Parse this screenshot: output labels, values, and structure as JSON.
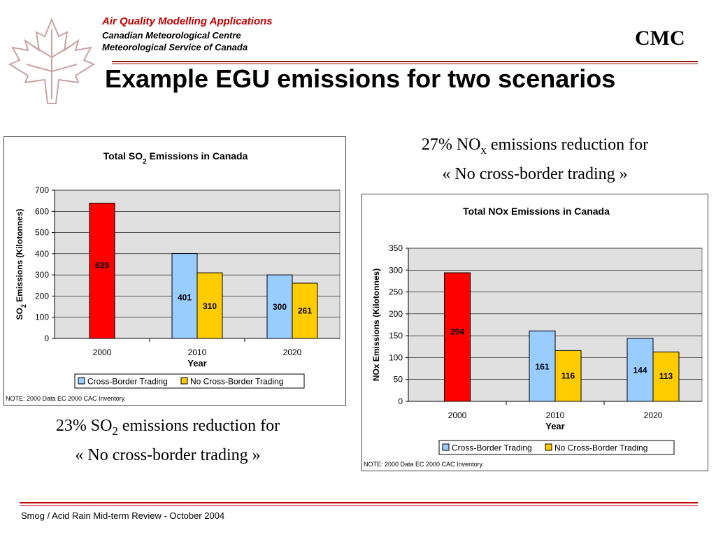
{
  "header": {
    "org_title": "Air Quality Modelling Applications",
    "org_line1": "Canadian Meteorological Centre",
    "org_line2": "Meteorological Service of Canada",
    "logo_text": "CMC",
    "slide_title": "Example EGU emissions for two scenarios"
  },
  "captions": {
    "nox_part1": "27% NO",
    "nox_sub": "x",
    "nox_part2": " emissions reduction for",
    "nox_line2": "« No cross-border trading »",
    "so2_part1": "23% SO",
    "so2_sub": "2",
    "so2_part2": " emissions reduction for",
    "so2_line2": "« No cross-border trading »"
  },
  "footer": {
    "text": "Smog / Acid Rain Mid-term Review - October 2004"
  },
  "colors": {
    "accent_red": "#c00000",
    "bar_2000": "#ff0000",
    "cross_border": "#99ccff",
    "no_cross_border": "#ffcc00",
    "plot_bg": "#e0e0e0"
  },
  "chart_data": [
    {
      "type": "bar",
      "title": "Total SO",
      "title_sub": "2",
      "title_suffix": " Emissions in Canada",
      "xlabel": "Year",
      "ylabel": "SO",
      "ylabel_sub": "2",
      "ylabel_suffix": " Emissions (Kilotonnes)",
      "categories": [
        "2000",
        "2010",
        "2020"
      ],
      "ylim": [
        0,
        700
      ],
      "yticks": [
        0,
        100,
        200,
        300,
        400,
        500,
        600,
        700
      ],
      "series": [
        {
          "name": "Cross-Border Trading",
          "values": [
            639,
            401,
            300
          ]
        },
        {
          "name": "No Cross-Border Trading",
          "values": [
            null,
            310,
            261
          ]
        }
      ],
      "legend": "bottom",
      "grid": true,
      "note": "NOTE: 2000 Data EC 2000 CAC Inventory."
    },
    {
      "type": "bar",
      "title": "Total NOx Emissions in Canada",
      "title_sub": "",
      "title_suffix": "",
      "xlabel": "Year",
      "ylabel": "NOx Emissions (Kilotonnes)",
      "ylabel_sub": "",
      "ylabel_suffix": "",
      "categories": [
        "2000",
        "2010",
        "2020"
      ],
      "ylim": [
        0,
        350
      ],
      "yticks": [
        0,
        50,
        100,
        150,
        200,
        250,
        300,
        350
      ],
      "series": [
        {
          "name": "Cross-Border Trading",
          "values": [
            294,
            161,
            144
          ]
        },
        {
          "name": "No Cross-Border Trading",
          "values": [
            null,
            116,
            113
          ]
        }
      ],
      "legend": "bottom",
      "grid": true,
      "note": "NOTE: 2000 Data EC 2000 CAC Inventory."
    }
  ]
}
